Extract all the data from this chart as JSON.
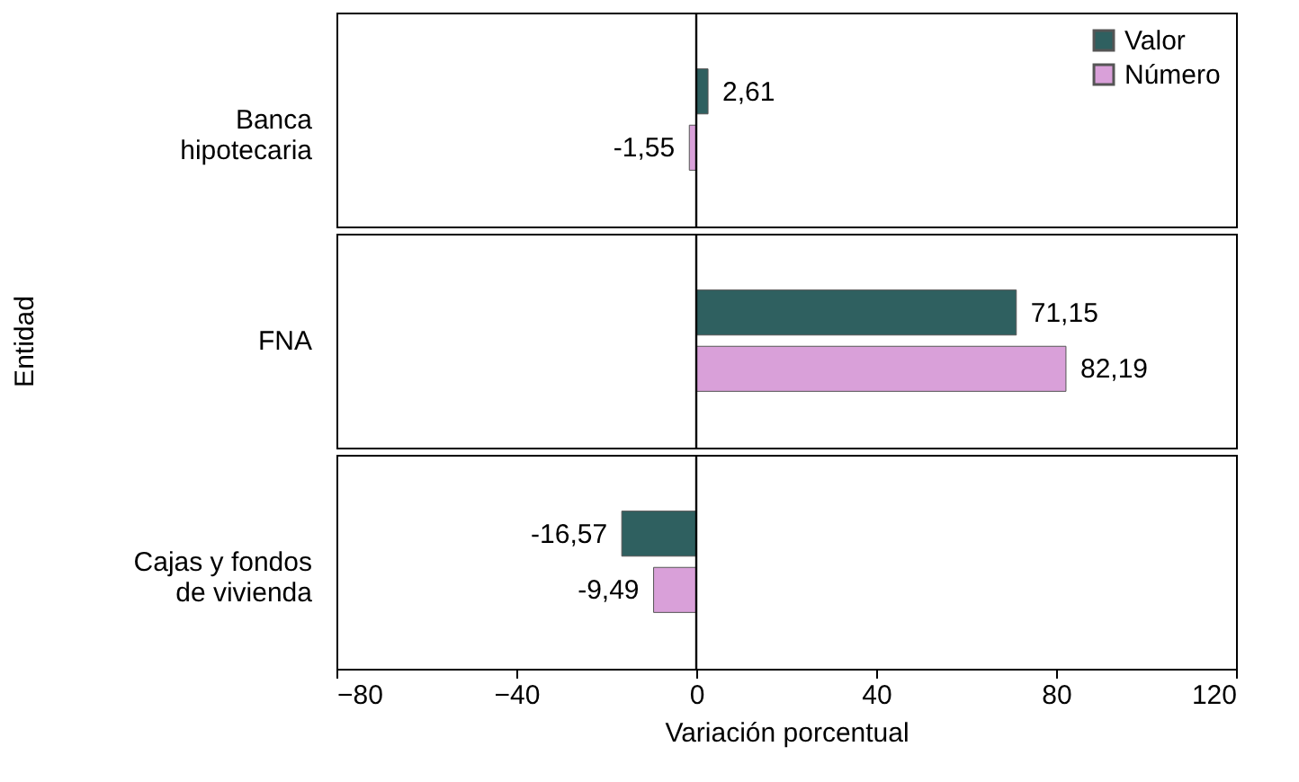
{
  "chart_data": [
    {
      "type": "bar",
      "orientation": "horizontal",
      "categories": [
        "Banca hipotecaria"
      ],
      "series": [
        {
          "name": "Valor",
          "color": "#2f6060",
          "values": [
            2.61
          ],
          "value_labels": [
            "2,61"
          ]
        },
        {
          "name": "Número",
          "color": "#d9a0d9",
          "values": [
            -1.55
          ],
          "value_labels": [
            "-1,55"
          ]
        }
      ],
      "xlim": [
        -80,
        120
      ],
      "tick_labels": "y",
      "legend": "top right",
      "ref_lines": [
        {
          "axis": "x",
          "value": 0,
          "color": "#000000"
        }
      ]
    },
    {
      "type": "bar",
      "orientation": "horizontal",
      "ylabel": "Entidad",
      "categories": [
        "FNA"
      ],
      "series": [
        {
          "color": "#2f6060",
          "values": [
            71.15
          ],
          "value_labels": [
            "71,15"
          ]
        },
        {
          "color": "#d9a0d9",
          "values": [
            82.19
          ],
          "value_labels": [
            "82,19"
          ]
        }
      ],
      "xlim": [
        -80,
        120
      ],
      "tick_labels": "y",
      "ref_lines": [
        {
          "axis": "x",
          "value": 0,
          "color": "#000000"
        }
      ]
    },
    {
      "type": "bar",
      "orientation": "horizontal",
      "xlabel": "Variación porcentual",
      "categories": [
        "Cajas y fondos de vivienda"
      ],
      "series": [
        {
          "color": "#2f6060",
          "values": [
            -16.57
          ],
          "value_labels": [
            "-16,57"
          ]
        },
        {
          "color": "#d9a0d9",
          "values": [
            -9.49
          ],
          "value_labels": [
            "-9,49"
          ]
        }
      ],
      "xlim": [
        -80,
        120
      ],
      "xticks": [
        -80,
        -40,
        0,
        40,
        80,
        120
      ],
      "ref_lines": [
        {
          "axis": "x",
          "value": 0,
          "color": "#000000"
        }
      ]
    }
  ]
}
